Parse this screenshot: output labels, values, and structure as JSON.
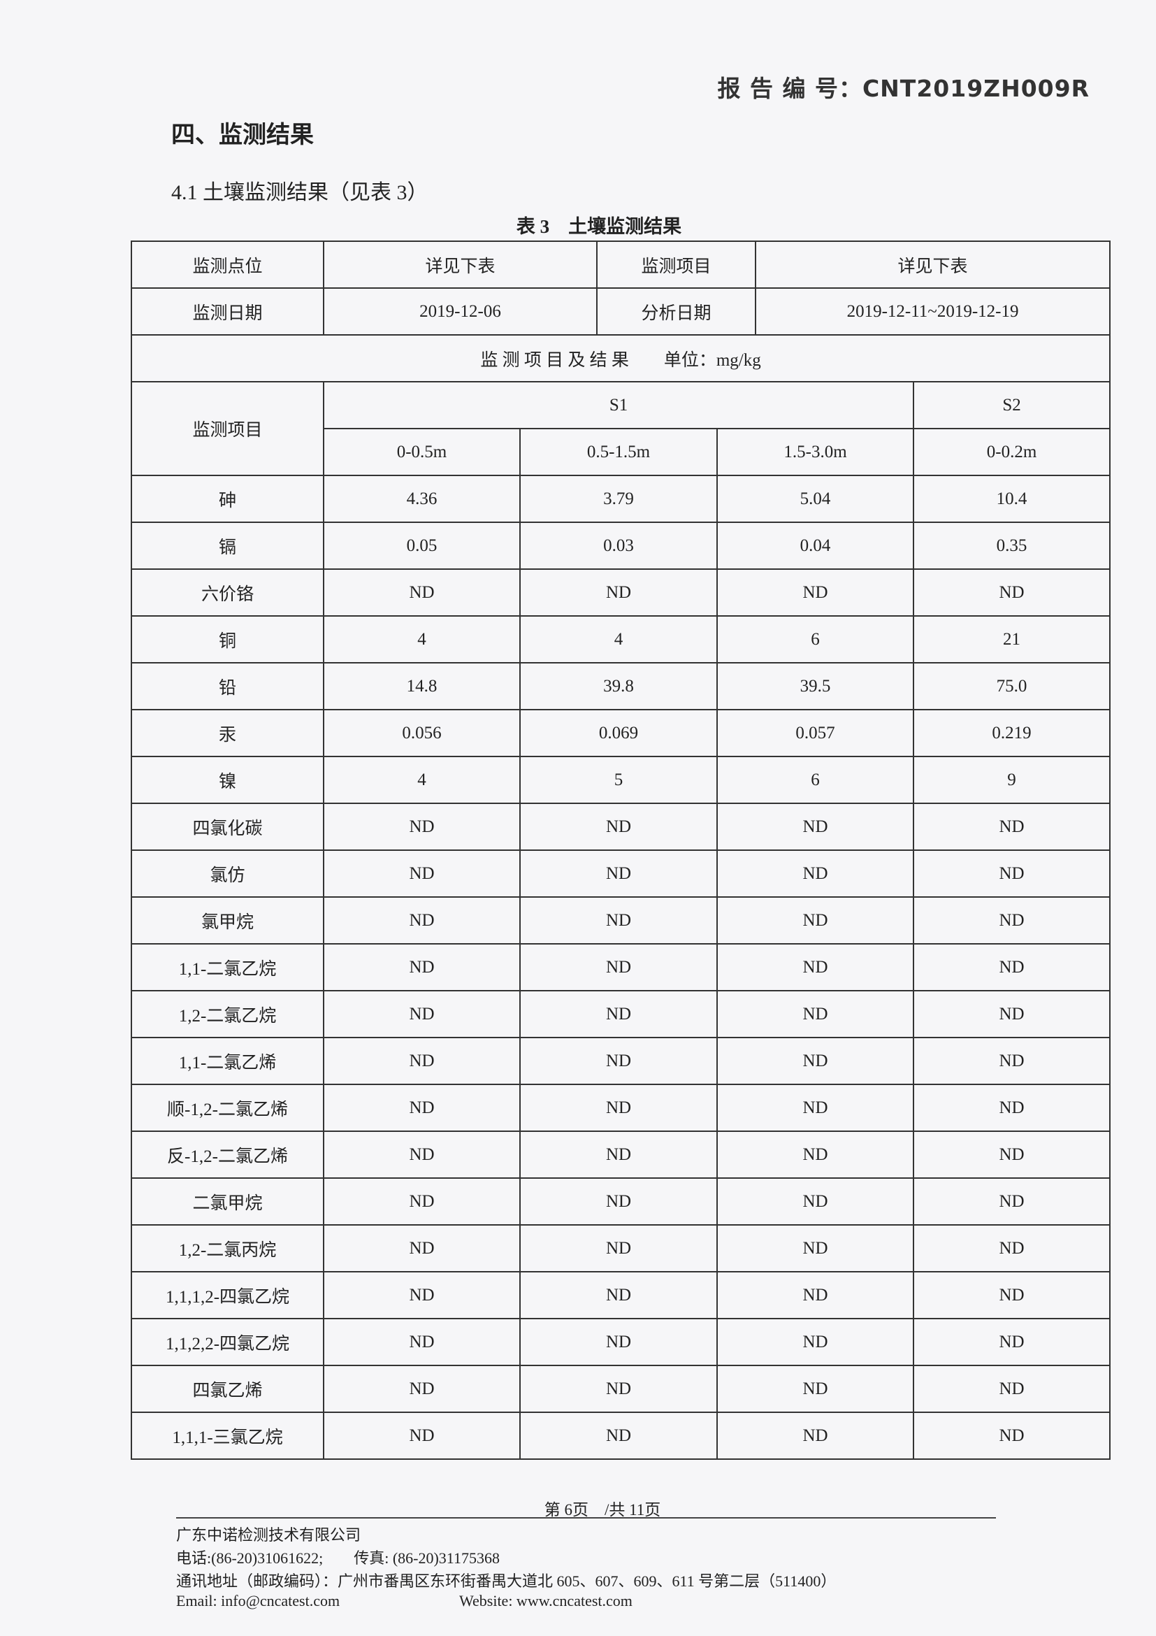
{
  "watermark": "CNT",
  "header": {
    "report_no": "报 告 编 号：CNT2019ZH009R"
  },
  "section_title": "四、监测结果",
  "subsection": "4.1 土壤监测结果（见表 3）",
  "table_caption": "表 3　土壤监测结果",
  "info": {
    "point_label": "监测点位",
    "point_value": "详见下表",
    "item_label": "监测项目",
    "item_value": "详见下表",
    "date_label": "监测日期",
    "date_value": "2019-12-06",
    "analysis_label": "分析日期",
    "analysis_value": "2019-12-11~2019-12-19",
    "results_heading": "监 测 项 目 及 结 果　　单位：mg/kg"
  },
  "columns": {
    "item": "监测项目",
    "s1": "S1",
    "s2": "S2",
    "depths": [
      "0-0.5m",
      "0.5-1.5m",
      "1.5-3.0m",
      "0-0.2m"
    ]
  },
  "rows": [
    [
      "砷",
      "4.36",
      "3.79",
      "5.04",
      "10.4"
    ],
    [
      "镉",
      "0.05",
      "0.03",
      "0.04",
      "0.35"
    ],
    [
      "六价铬",
      "ND",
      "ND",
      "ND",
      "ND"
    ],
    [
      "铜",
      "4",
      "4",
      "6",
      "21"
    ],
    [
      "铅",
      "14.8",
      "39.8",
      "39.5",
      "75.0"
    ],
    [
      "汞",
      "0.056",
      "0.069",
      "0.057",
      "0.219"
    ],
    [
      "镍",
      "4",
      "5",
      "6",
      "9"
    ],
    [
      "四氯化碳",
      "ND",
      "ND",
      "ND",
      "ND"
    ],
    [
      "氯仿",
      "ND",
      "ND",
      "ND",
      "ND"
    ],
    [
      "氯甲烷",
      "ND",
      "ND",
      "ND",
      "ND"
    ],
    [
      "1,1-二氯乙烷",
      "ND",
      "ND",
      "ND",
      "ND"
    ],
    [
      "1,2-二氯乙烷",
      "ND",
      "ND",
      "ND",
      "ND"
    ],
    [
      "1,1-二氯乙烯",
      "ND",
      "ND",
      "ND",
      "ND"
    ],
    [
      "顺-1,2-二氯乙烯",
      "ND",
      "ND",
      "ND",
      "ND"
    ],
    [
      "反-1,2-二氯乙烯",
      "ND",
      "ND",
      "ND",
      "ND"
    ],
    [
      "二氯甲烷",
      "ND",
      "ND",
      "ND",
      "ND"
    ],
    [
      "1,2-二氯丙烷",
      "ND",
      "ND",
      "ND",
      "ND"
    ],
    [
      "1,1,1,2-四氯乙烷",
      "ND",
      "ND",
      "ND",
      "ND"
    ],
    [
      "1,1,2,2-四氯乙烷",
      "ND",
      "ND",
      "ND",
      "ND"
    ],
    [
      "四氯乙烯",
      "ND",
      "ND",
      "ND",
      "ND"
    ],
    [
      "1,1,1-三氯乙烷",
      "ND",
      "ND",
      "ND",
      "ND"
    ]
  ],
  "footer": {
    "page": "第 6页　/共 11页",
    "company": "广东中诺检测技术有限公司",
    "phone_fax": "电话:(86-20)31061622;　　传真: (86-20)31175368",
    "address": "通讯地址（邮政编码）：广州市番禺区东环街番禺大道北 605、607、609、611 号第二层（511400）",
    "email": "Email: info@cncatest.com",
    "website": "Website: www.cncatest.com"
  }
}
